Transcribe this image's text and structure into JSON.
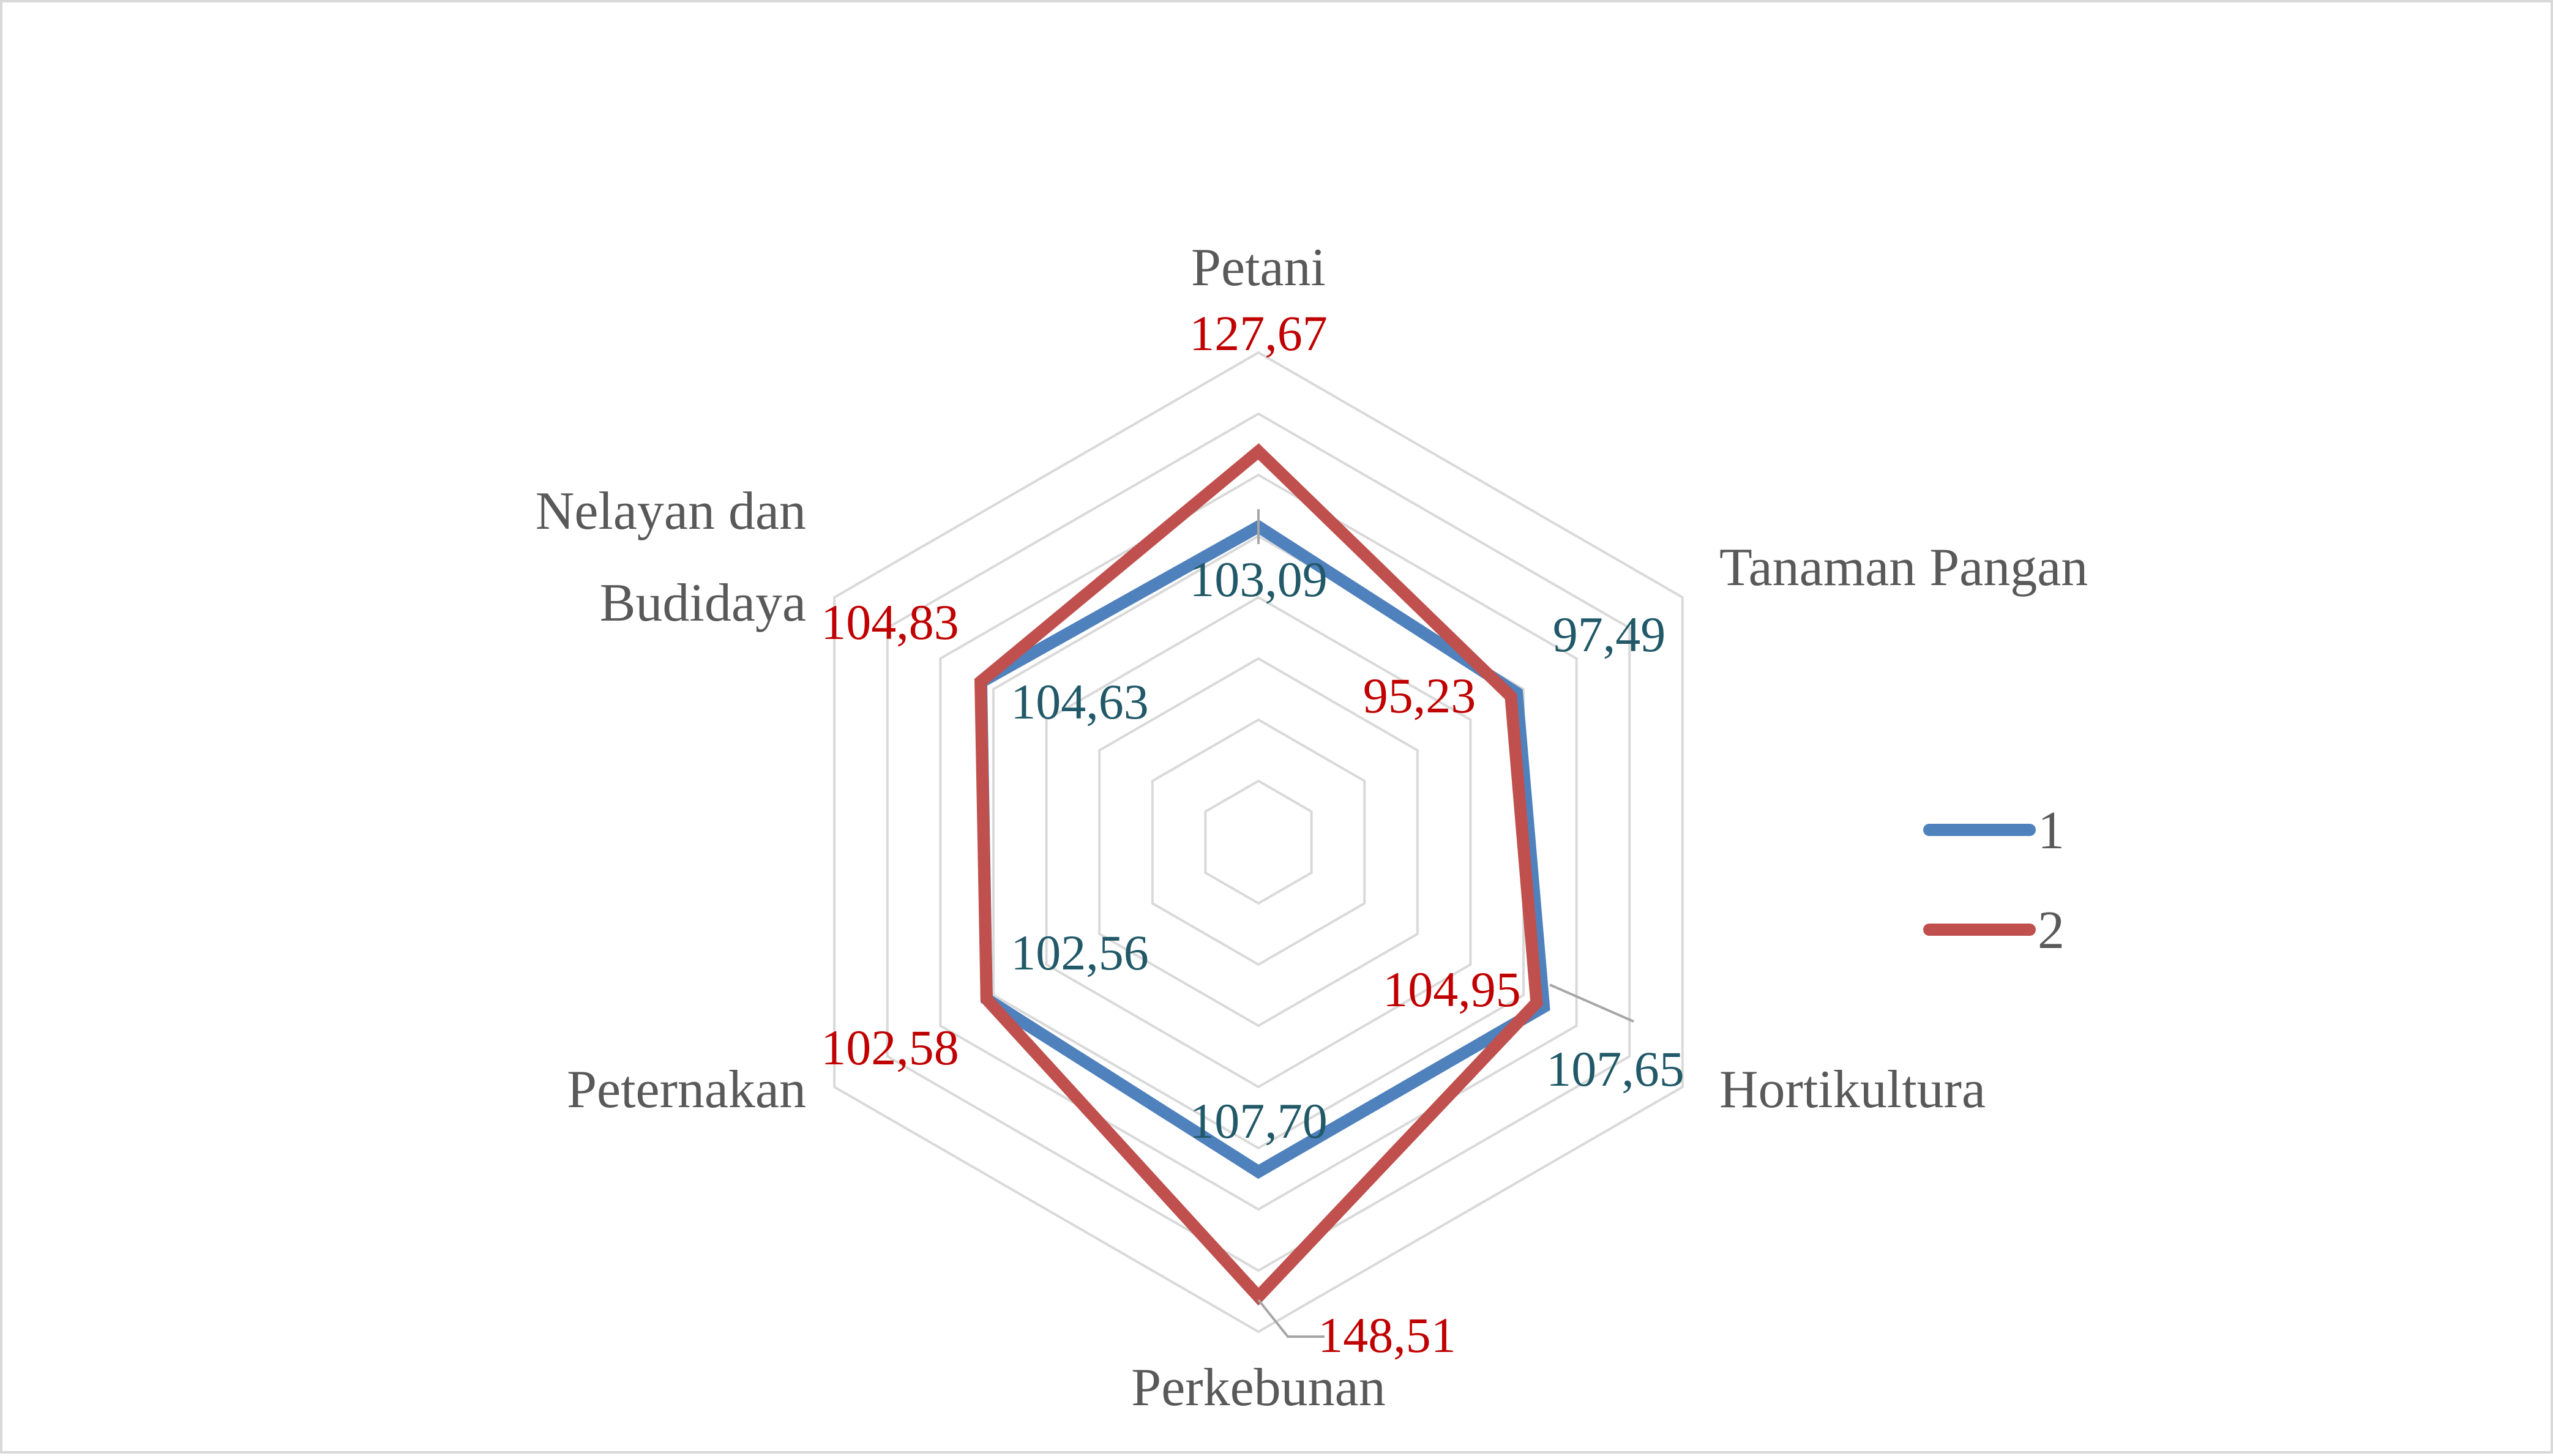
{
  "chart_data": {
    "type": "radar",
    "categories": [
      "Petani",
      "Tanaman Pangan",
      "Hortikultura",
      "Perkebunan",
      "Peternakan",
      "Nelayan dan Budidaya"
    ],
    "series": [
      {
        "name": "1",
        "color": "#4f81bd",
        "values": [
          103.09,
          97.49,
          107.65,
          107.7,
          102.56,
          104.63
        ],
        "labels": [
          "103,09",
          "97,49",
          "107,65",
          "107,70",
          "102,56",
          "104,63"
        ],
        "label_color": "#215968"
      },
      {
        "name": "2",
        "color": "#c0504d",
        "values": [
          127.67,
          95.23,
          104.95,
          148.51,
          102.58,
          104.83
        ],
        "labels": [
          "127,67",
          "95,23",
          "104,95",
          "148,51",
          "102,58",
          "104,83"
        ],
        "label_color": "#c00000"
      }
    ],
    "radial_axis_range": [
      0,
      160
    ],
    "gridlines": true,
    "gridline_color": "#d9d9d9",
    "legend_position": "right"
  }
}
